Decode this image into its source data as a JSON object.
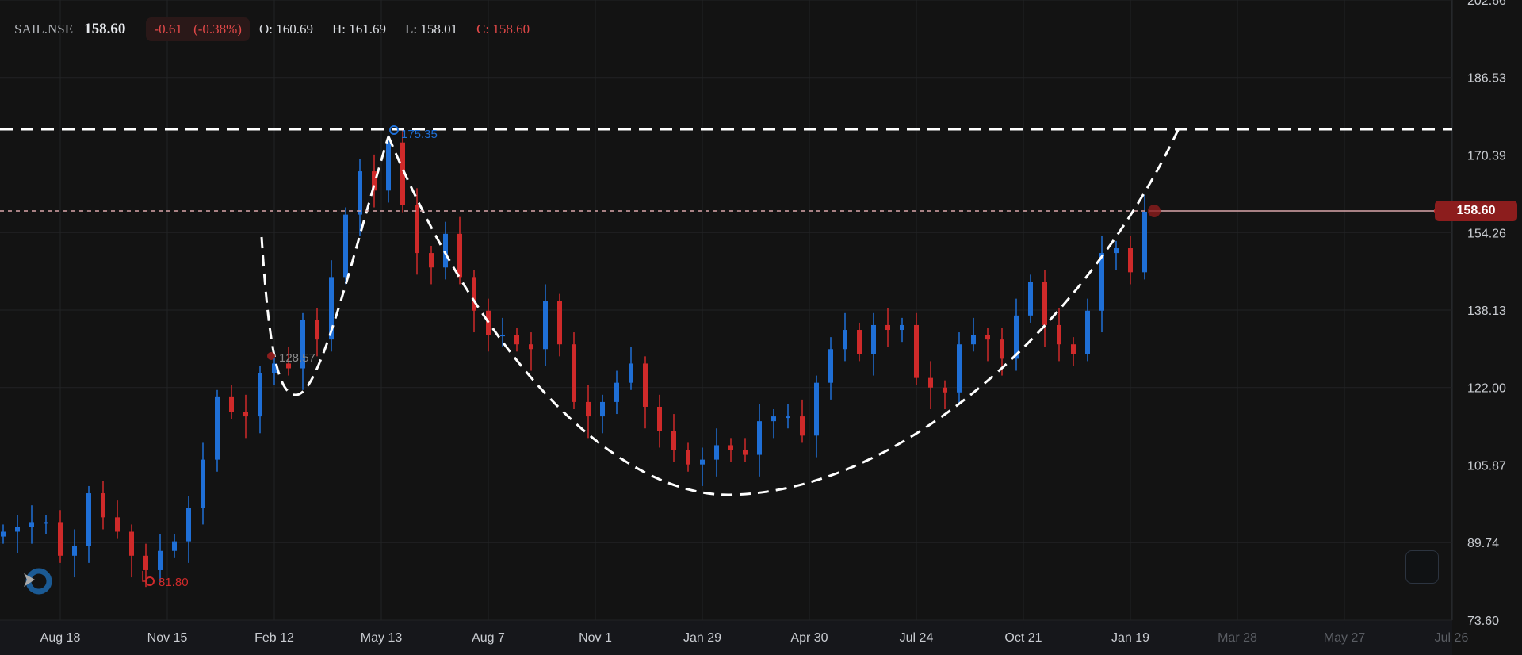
{
  "header": {
    "symbol": "SAIL.NSE",
    "last": "158.60",
    "change": "-0.61",
    "change_pct": "(-0.38%)",
    "open": "O: 160.69",
    "high": "H: 161.69",
    "low": "L: 158.01",
    "close": "C: 158.60"
  },
  "colors": {
    "background": "#131313",
    "up": "#1f6fd6",
    "down": "#cf2a2a",
    "last_price": "#8c1d1d",
    "grid": "#222325"
  },
  "chart_data": {
    "type": "candlestick",
    "title": "",
    "ylim": [
      73.6,
      202.66
    ],
    "y_ticks": [
      "202.66",
      "186.53",
      "170.39",
      "154.26",
      "138.13",
      "122.00",
      "105.87",
      "89.74",
      "73.60"
    ],
    "x_ticks": [
      "Aug 18",
      "Nov 15",
      "Feb 12",
      "May 13",
      "Aug 7",
      "Nov 1",
      "Jan 29",
      "Apr 30",
      "Jul 24",
      "Oct 21",
      "Jan 19",
      "Mar 28",
      "May 27",
      "Jul 26"
    ],
    "grid": true,
    "closes": [
      92,
      93,
      94,
      94,
      87,
      89,
      100,
      95,
      92,
      87,
      84,
      88,
      90,
      97,
      107,
      120,
      117,
      116,
      125,
      127,
      126,
      136,
      132,
      145,
      158,
      167,
      163,
      173,
      160,
      150,
      147,
      154,
      145,
      138,
      133,
      133,
      131,
      130,
      140,
      131,
      119,
      116,
      119,
      123,
      127,
      118,
      113,
      109,
      106,
      107,
      110,
      109,
      108,
      115,
      116,
      116,
      112,
      123,
      130,
      134,
      129,
      135,
      134,
      135,
      124,
      122,
      121,
      131,
      133,
      132,
      128,
      137,
      144,
      135,
      131,
      129,
      138,
      150,
      151,
      146,
      158.6
    ],
    "last_price": "158.60",
    "annotations": [
      {
        "label": "175.35",
        "kind": "high",
        "color": "#1f6fd6"
      },
      {
        "label": "128.57",
        "kind": "marker",
        "color": "#8a8a8a"
      },
      {
        "label": "81.80",
        "kind": "low",
        "color": "#cf2a2a"
      }
    ],
    "drawings": [
      "resistance-line-175",
      "cup-and-handle-curve"
    ]
  }
}
